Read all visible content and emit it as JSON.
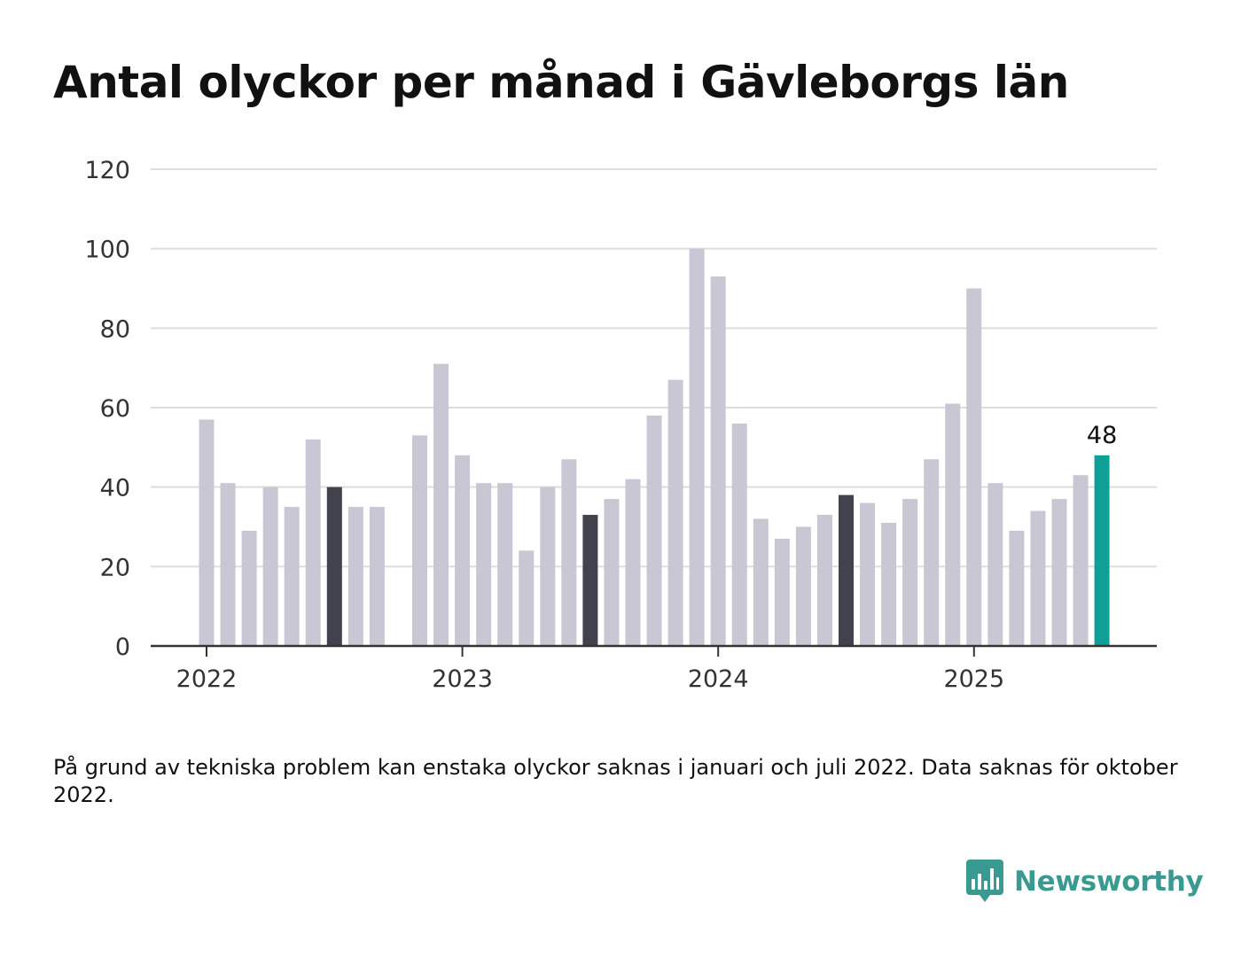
{
  "chart_data": {
    "type": "bar",
    "title": "Antal olyckor per månad i Gävleborgs län",
    "footnote": "På grund av tekniska problem kan enstaka olyckor saknas i januari och juli 2022. Data saknas för oktober 2022.",
    "x_start": "2022-01",
    "x_tick_labels": [
      "2022",
      "2023",
      "2024",
      "2025"
    ],
    "ylim": [
      0,
      120
    ],
    "y_ticks": [
      0,
      20,
      40,
      60,
      80,
      100,
      120
    ],
    "grid": true,
    "values": [
      57,
      41,
      29,
      40,
      35,
      52,
      40,
      35,
      35,
      null,
      53,
      71,
      48,
      41,
      41,
      24,
      40,
      47,
      33,
      37,
      42,
      58,
      67,
      100,
      93,
      56,
      32,
      27,
      30,
      33,
      38,
      36,
      31,
      37,
      47,
      61,
      90,
      41,
      29,
      34,
      37,
      43,
      48
    ],
    "highlighted_months": [
      "2022-07",
      "2023-07",
      "2024-07"
    ],
    "latest_value_label": "48",
    "colors": {
      "bar": "#c8c7d3",
      "highlight": "#42414e",
      "latest": "#0e9f96",
      "grid": "#dddddd",
      "axis": "#333333"
    }
  },
  "brand": {
    "name": "Newsworthy",
    "icon": "newsworthy-logo-icon",
    "color": "#3a9a92"
  }
}
